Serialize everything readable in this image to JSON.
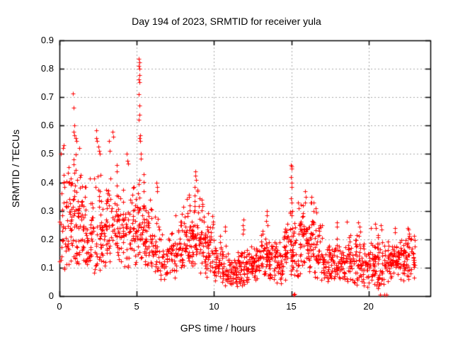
{
  "window": {
    "background": "#ffffff",
    "text_color": "#000000"
  },
  "chart_data": {
    "type": "scatter",
    "title": "Day 194 of 2023, SRMTID for receiver yula",
    "xlabel": "GPS time / hours",
    "ylabel": "SRMTID / TECUs",
    "xlim": [
      0,
      24
    ],
    "ylim": [
      0,
      0.9
    ],
    "xticks": [
      0,
      5,
      10,
      15,
      20
    ],
    "xtick_labels": [
      "0",
      "5",
      "10",
      "15",
      "20"
    ],
    "yticks": [
      0,
      0.1,
      0.2,
      0.3,
      0.4,
      0.5,
      0.6,
      0.7,
      0.8,
      0.9
    ],
    "ytick_labels": [
      "0",
      "0.1",
      "0.2",
      "0.3",
      "0.4",
      "0.5",
      "0.6",
      "0.7",
      "0.8",
      "0.9"
    ],
    "grid": "dashed gray at every major tick, mirrored inward ticks on all four borders",
    "grid_color": "#a6a6a6",
    "legend": "none",
    "marker": {
      "shape": "plus",
      "color": "#ff0000",
      "size": 7
    },
    "density_bins_format": "[x_start_h, x_end_h, n_points, y_min_TECU, y_max_TECU, skew]",
    "density_bins": [
      [
        0.0,
        0.5,
        34,
        0.08,
        0.45,
        1.3
      ],
      [
        0.5,
        1.0,
        48,
        0.1,
        0.5,
        1.2
      ],
      [
        1.0,
        1.5,
        48,
        0.1,
        0.52,
        1.3
      ],
      [
        1.5,
        1.75,
        20,
        0.1,
        0.45,
        1.2
      ],
      [
        1.75,
        1.95,
        16,
        0.025,
        0.3,
        0.9
      ],
      [
        1.95,
        2.5,
        40,
        0.07,
        0.46,
        1.3
      ],
      [
        2.5,
        3.0,
        42,
        0.08,
        0.45,
        1.3
      ],
      [
        3.0,
        3.5,
        38,
        0.1,
        0.48,
        1.3
      ],
      [
        3.5,
        4.0,
        38,
        0.1,
        0.46,
        1.3
      ],
      [
        4.0,
        4.5,
        36,
        0.1,
        0.42,
        1.3
      ],
      [
        4.5,
        5.0,
        38,
        0.1,
        0.45,
        1.3
      ],
      [
        5.0,
        5.5,
        46,
        0.1,
        0.48,
        1.4
      ],
      [
        5.5,
        6.0,
        42,
        0.09,
        0.38,
        1.4
      ],
      [
        6.0,
        6.5,
        32,
        0.06,
        0.3,
        1.3
      ],
      [
        6.5,
        7.0,
        28,
        0.055,
        0.22,
        1.2
      ],
      [
        7.0,
        7.5,
        28,
        0.06,
        0.25,
        1.2
      ],
      [
        7.5,
        8.0,
        34,
        0.08,
        0.32,
        1.3
      ],
      [
        8.0,
        8.5,
        40,
        0.1,
        0.38,
        1.3
      ],
      [
        8.5,
        9.0,
        44,
        0.1,
        0.4,
        1.2
      ],
      [
        9.0,
        9.5,
        44,
        0.08,
        0.35,
        1.2
      ],
      [
        9.5,
        10.0,
        40,
        0.06,
        0.3,
        1.3
      ],
      [
        10.0,
        10.5,
        38,
        0.05,
        0.25,
        1.3
      ],
      [
        10.5,
        11.0,
        38,
        0.026,
        0.2,
        1.3
      ],
      [
        11.0,
        11.5,
        38,
        0.03,
        0.15,
        1.2
      ],
      [
        11.5,
        12.0,
        38,
        0.03,
        0.18,
        1.3
      ],
      [
        12.0,
        12.5,
        38,
        0.04,
        0.18,
        1.2
      ],
      [
        12.5,
        13.0,
        38,
        0.05,
        0.2,
        1.2
      ],
      [
        13.0,
        13.5,
        38,
        0.05,
        0.25,
        1.3
      ],
      [
        13.5,
        14.0,
        38,
        0.05,
        0.22,
        1.3
      ],
      [
        14.0,
        14.5,
        36,
        0.04,
        0.2,
        1.2
      ],
      [
        14.5,
        15.0,
        38,
        0.05,
        0.3,
        1.2
      ],
      [
        15.0,
        15.5,
        38,
        0.05,
        0.32,
        1.3
      ],
      [
        15.5,
        16.0,
        42,
        0.08,
        0.35,
        1.2
      ],
      [
        16.0,
        16.5,
        42,
        0.08,
        0.35,
        1.3
      ],
      [
        16.5,
        17.0,
        38,
        0.05,
        0.3,
        1.4
      ],
      [
        17.0,
        17.5,
        34,
        0.045,
        0.2,
        1.2
      ],
      [
        17.5,
        18.0,
        34,
        0.05,
        0.22,
        1.3
      ],
      [
        18.0,
        18.5,
        34,
        0.05,
        0.22,
        1.3
      ],
      [
        18.5,
        19.0,
        34,
        0.05,
        0.22,
        1.2
      ],
      [
        19.0,
        19.5,
        36,
        0.03,
        0.25,
        1.3
      ],
      [
        19.5,
        20.0,
        36,
        0.03,
        0.22,
        1.3
      ],
      [
        20.0,
        20.5,
        38,
        0.025,
        0.25,
        1.4
      ],
      [
        20.5,
        21.0,
        38,
        0.025,
        0.25,
        1.4
      ],
      [
        21.0,
        21.5,
        38,
        0.05,
        0.22,
        1.2
      ],
      [
        21.5,
        22.0,
        38,
        0.05,
        0.24,
        1.2
      ],
      [
        22.0,
        22.5,
        38,
        0.05,
        0.22,
        1.2
      ],
      [
        22.5,
        23.0,
        38,
        0.05,
        0.24,
        1.2
      ]
    ],
    "outlier_points": [
      [
        0.1,
        0.5
      ],
      [
        0.25,
        0.52
      ],
      [
        0.28,
        0.53
      ],
      [
        0.87,
        0.713
      ],
      [
        0.91,
        0.663
      ],
      [
        0.96,
        0.6
      ],
      [
        0.92,
        0.578
      ],
      [
        0.98,
        0.565
      ],
      [
        1.05,
        0.555
      ],
      [
        1.1,
        0.545
      ],
      [
        1.3,
        0.52
      ],
      [
        2.38,
        0.555
      ],
      [
        2.4,
        0.583
      ],
      [
        2.45,
        0.545
      ],
      [
        2.5,
        0.525
      ],
      [
        2.55,
        0.51
      ],
      [
        2.62,
        0.5
      ],
      [
        3.2,
        0.545
      ],
      [
        3.25,
        0.51
      ],
      [
        3.45,
        0.578
      ],
      [
        3.5,
        0.56
      ],
      [
        3.7,
        0.46
      ],
      [
        3.72,
        0.44
      ],
      [
        4.35,
        0.5
      ],
      [
        4.4,
        0.475
      ],
      [
        4.45,
        0.465
      ],
      [
        5.15,
        0.835
      ],
      [
        5.17,
        0.822
      ],
      [
        5.15,
        0.81
      ],
      [
        5.16,
        0.8
      ],
      [
        5.18,
        0.777
      ],
      [
        5.15,
        0.762
      ],
      [
        5.17,
        0.752
      ],
      [
        5.14,
        0.71
      ],
      [
        5.16,
        0.67
      ],
      [
        5.18,
        0.637
      ],
      [
        5.15,
        0.62
      ],
      [
        5.2,
        0.565
      ],
      [
        5.18,
        0.555
      ],
      [
        5.22,
        0.545
      ],
      [
        5.25,
        0.5
      ],
      [
        5.28,
        0.483
      ],
      [
        6.28,
        0.4
      ],
      [
        6.3,
        0.385
      ],
      [
        6.32,
        0.37
      ],
      [
        8.75,
        0.385
      ],
      [
        8.78,
        0.44
      ],
      [
        8.8,
        0.425
      ],
      [
        8.83,
        0.41
      ],
      [
        9.05,
        0.345
      ],
      [
        10.7,
        0.245
      ],
      [
        10.72,
        0.23
      ],
      [
        11.86,
        0.22
      ],
      [
        11.88,
        0.25
      ],
      [
        11.9,
        0.27
      ],
      [
        11.92,
        0.235
      ],
      [
        13.38,
        0.265
      ],
      [
        13.4,
        0.3
      ],
      [
        13.42,
        0.285
      ],
      [
        13.45,
        0.25
      ],
      [
        14.97,
        0.345
      ],
      [
        14.98,
        0.46
      ],
      [
        14.99,
        0.42
      ],
      [
        15.0,
        0.455
      ],
      [
        15.0,
        0.33
      ],
      [
        15.01,
        0.4
      ],
      [
        15.02,
        0.45
      ],
      [
        15.02,
        0.285
      ],
      [
        15.03,
        0.385
      ],
      [
        15.05,
        0.3
      ],
      [
        15.18,
        0.005
      ],
      [
        15.22,
        0.008
      ],
      [
        15.45,
        0.33
      ],
      [
        15.47,
        0.31
      ],
      [
        15.88,
        0.33
      ],
      [
        15.9,
        0.37
      ],
      [
        15.92,
        0.35
      ],
      [
        16.3,
        0.35
      ],
      [
        16.32,
        0.33
      ],
      [
        16.6,
        0.31
      ],
      [
        16.62,
        0.295
      ],
      [
        17.95,
        0.26
      ],
      [
        17.97,
        0.245
      ],
      [
        18.6,
        0.262
      ],
      [
        19.35,
        0.26
      ],
      [
        19.4,
        0.245
      ],
      [
        20.15,
        0.24
      ],
      [
        20.45,
        0.255
      ],
      [
        20.48,
        0.24
      ],
      [
        20.8,
        0.25
      ],
      [
        20.82,
        0.235
      ],
      [
        20.75,
        0.005
      ],
      [
        21.0,
        0.006
      ],
      [
        21.15,
        0.004
      ],
      [
        21.7,
        0.24
      ],
      [
        21.72,
        0.225
      ],
      [
        22.55,
        0.24
      ],
      [
        22.6,
        0.235
      ],
      [
        22.62,
        0.22
      ]
    ]
  }
}
